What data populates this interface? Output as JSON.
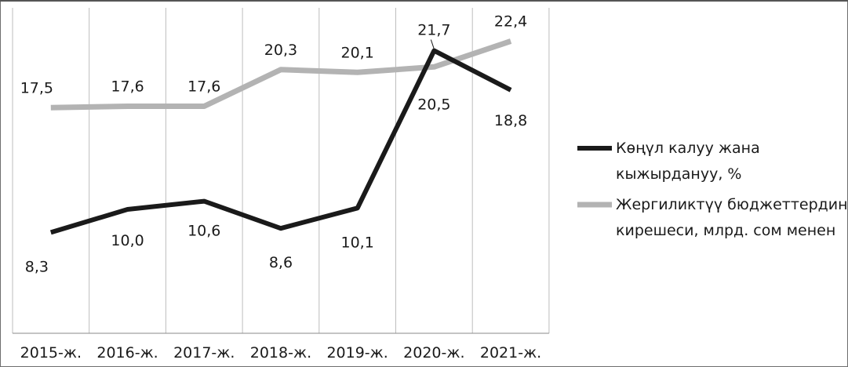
{
  "chart_data": {
    "type": "line",
    "categories": [
      "2015-ж.",
      "2016-ж.",
      "2017-ж.",
      "2018-ж.",
      "2019-ж.",
      "2020-ж.",
      "2021-ж."
    ],
    "series": [
      {
        "name": "Көңүл калуу жана кыжырдануу, %",
        "legend_lines": [
          "Көңүл калуу жана",
          "кыжырдануу, %"
        ],
        "color": "#1a1a1a",
        "values": [
          8.3,
          10.0,
          10.6,
          8.6,
          10.1,
          21.7,
          18.8
        ],
        "labels": [
          "8,3",
          "10,0",
          "10,6",
          "8,6",
          "10,1",
          "21,7",
          "18,8"
        ]
      },
      {
        "name": "Жергиликтүү бюджеттердин кирешеси, млрд. сом менен",
        "legend_lines": [
          "Жергиликтүү бюджеттердин",
          "кирешеси, млрд. сом менен"
        ],
        "color": "#b3b3b3",
        "values": [
          17.5,
          17.6,
          17.6,
          20.3,
          20.1,
          20.5,
          22.4
        ],
        "labels": [
          "17,5",
          "17,6",
          "17,6",
          "20,3",
          "20,1",
          "20,5",
          "22,4"
        ]
      }
    ],
    "grid": "vertical",
    "legend_position": "right"
  }
}
